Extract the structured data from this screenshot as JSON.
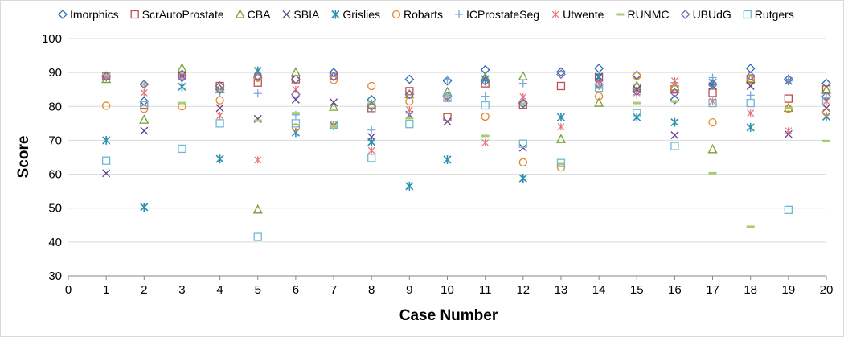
{
  "chart_data": {
    "type": "scatter",
    "title": "",
    "xlabel": "Case Number",
    "ylabel": "Score",
    "xlim": [
      0,
      20
    ],
    "ylim": [
      30,
      100
    ],
    "x_ticks": [
      0,
      1,
      2,
      3,
      4,
      5,
      6,
      7,
      8,
      9,
      10,
      11,
      12,
      13,
      14,
      15,
      16,
      17,
      18,
      19,
      20
    ],
    "y_ticks": [
      30,
      40,
      50,
      60,
      70,
      80,
      90,
      100
    ],
    "grid": "horizontal",
    "legend_position": "top",
    "x": [
      1,
      2,
      3,
      4,
      5,
      6,
      7,
      8,
      9,
      10,
      11,
      12,
      13,
      14,
      15,
      16,
      17,
      18,
      19,
      20
    ],
    "series": [
      {
        "name": "Imorphics",
        "marker": "diamond",
        "color": "#2E6DB4",
        "values": [
          89,
          81.5,
          89.5,
          86,
          88.5,
          88,
          90,
          82,
          88,
          87.5,
          90.8,
          81,
          90.2,
          91.2,
          89.2,
          82,
          86.5,
          91.2,
          88,
          86.8
        ]
      },
      {
        "name": "ScrAutoProstate",
        "marker": "square",
        "color": "#C0504D",
        "values": [
          89,
          80.5,
          89,
          86,
          87,
          88,
          89,
          79.5,
          84.5,
          76.8,
          86.8,
          80.5,
          86,
          88.5,
          85.5,
          85,
          84,
          88,
          82.3,
          85
        ]
      },
      {
        "name": "CBA",
        "marker": "triangle",
        "color": "#77A033",
        "values": [
          88,
          76,
          91.2,
          85,
          49.5,
          90,
          79.8,
          80.5,
          83.5,
          84.2,
          88.5,
          88.8,
          70.3,
          81,
          86,
          85.8,
          67.3,
          88,
          79.5,
          84.8
        ]
      },
      {
        "name": "SBIA",
        "marker": "x",
        "color": "#5F3F8C",
        "values": [
          60.3,
          72.8,
          89,
          79.5,
          76.3,
          82,
          81.2,
          71,
          77.5,
          75.5,
          88,
          67.8,
          null,
          88.8,
          85,
          71.5,
          86,
          86,
          71.8,
          79.5
        ]
      },
      {
        "name": "Grislies",
        "marker": "star",
        "color": "#2B8FB0",
        "values": [
          70,
          50.3,
          85.8,
          64.5,
          90.5,
          72.3,
          74.3,
          69.5,
          56.5,
          64.3,
          88,
          58.8,
          76.8,
          88.5,
          76.8,
          75.3,
          87,
          73.8,
          87.5,
          77
        ]
      },
      {
        "name": "Robarts",
        "marker": "circle",
        "color": "#E8862E",
        "values": [
          80.2,
          79.3,
          80,
          81.8,
          88.5,
          73.8,
          87.8,
          86,
          81.5,
          null,
          77,
          63.5,
          62,
          83,
          89,
          85.3,
          75.3,
          88.3,
          79.3,
          78.3
        ]
      },
      {
        "name": "ICProstateSeg",
        "marker": "plus",
        "color": "#7EA6DA",
        "values": [
          88.5,
          86.5,
          88,
          84,
          83.8,
          77.5,
          74.5,
          73,
          78,
          88,
          83,
          86.8,
          null,
          86,
          83.5,
          87,
          88.5,
          83.3,
          87.5,
          82.5
        ]
      },
      {
        "name": "Utwente",
        "marker": "asterisk",
        "color": "#E57373",
        "values": [
          89,
          84,
          88.8,
          77.3,
          64.2,
          85,
          74.5,
          67,
          79,
          82.5,
          69.3,
          82.8,
          74,
          87,
          84,
          87.5,
          81.5,
          78,
          72.8,
          81.5
        ]
      },
      {
        "name": "RUNMC",
        "marker": "dash",
        "color": "#A6CC74",
        "values": [
          89.5,
          86.5,
          81,
          84.5,
          75.8,
          78,
          74,
          81,
          76.5,
          83,
          71.3,
          80.8,
          63,
          85.5,
          81,
          81.5,
          60.3,
          44.5,
          79.5,
          69.8
        ]
      },
      {
        "name": "UBUdG",
        "marker": "diamond",
        "color": "#7E68B0",
        "values": [
          88.8,
          86.5,
          88.5,
          85,
          89,
          83.5,
          88.8,
          80,
          83.5,
          83,
          87.5,
          80.8,
          89.5,
          86.5,
          84.5,
          84,
          86.5,
          89,
          88,
          83
        ]
      },
      {
        "name": "Rutgers",
        "marker": "square",
        "color": "#6FB8D6",
        "values": [
          64,
          80.3,
          67.5,
          75,
          41.5,
          75,
          74.5,
          64.8,
          74.8,
          82.5,
          80.3,
          69,
          63.3,
          85.5,
          78,
          68.3,
          81,
          81,
          49.5,
          81.5
        ]
      }
    ]
  }
}
